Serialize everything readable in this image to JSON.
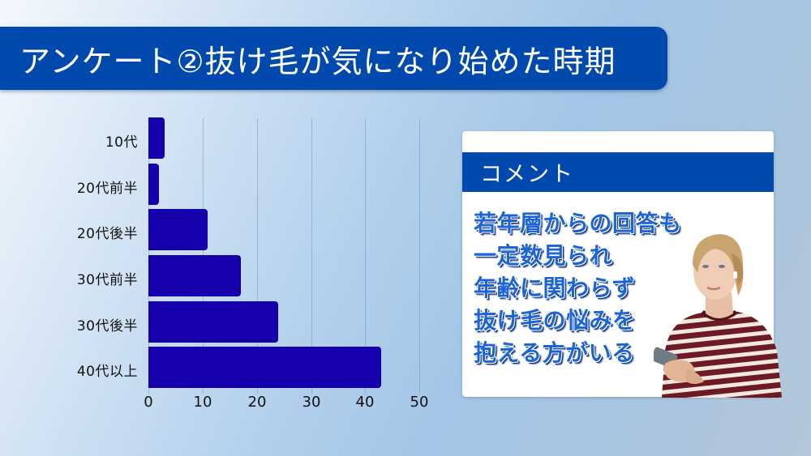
{
  "title": "アンケート②抜け毛が気になり始めた時期",
  "chart_data": {
    "type": "bar",
    "orientation": "horizontal",
    "title": "アンケート②抜け毛が気になり始めた時期",
    "categories": [
      "10代",
      "20代前半",
      "20代後半",
      "30代前半",
      "30代後半",
      "40代以上"
    ],
    "values": [
      3,
      2,
      11,
      17,
      24,
      43
    ],
    "xlabel": "",
    "ylabel": "",
    "xlim": [
      0,
      50
    ],
    "xticks": [
      "0",
      "10",
      "20",
      "30",
      "40",
      "50"
    ],
    "grid": "vertical",
    "legend": "none",
    "bar_color": "#1600ab"
  },
  "comment": {
    "header": "コメント",
    "lines": [
      "若年層からの回答も",
      "一定数見られ",
      "年齢に関わらず",
      "抜け毛の悩みを",
      "抱える方がいる"
    ]
  },
  "photo": {
    "description": "woman in striped shirt holding smartphone, looking up"
  },
  "colors": {
    "title_bg": "#0249ad",
    "bar": "#1600ab",
    "comment_text": "#1c63d8"
  }
}
